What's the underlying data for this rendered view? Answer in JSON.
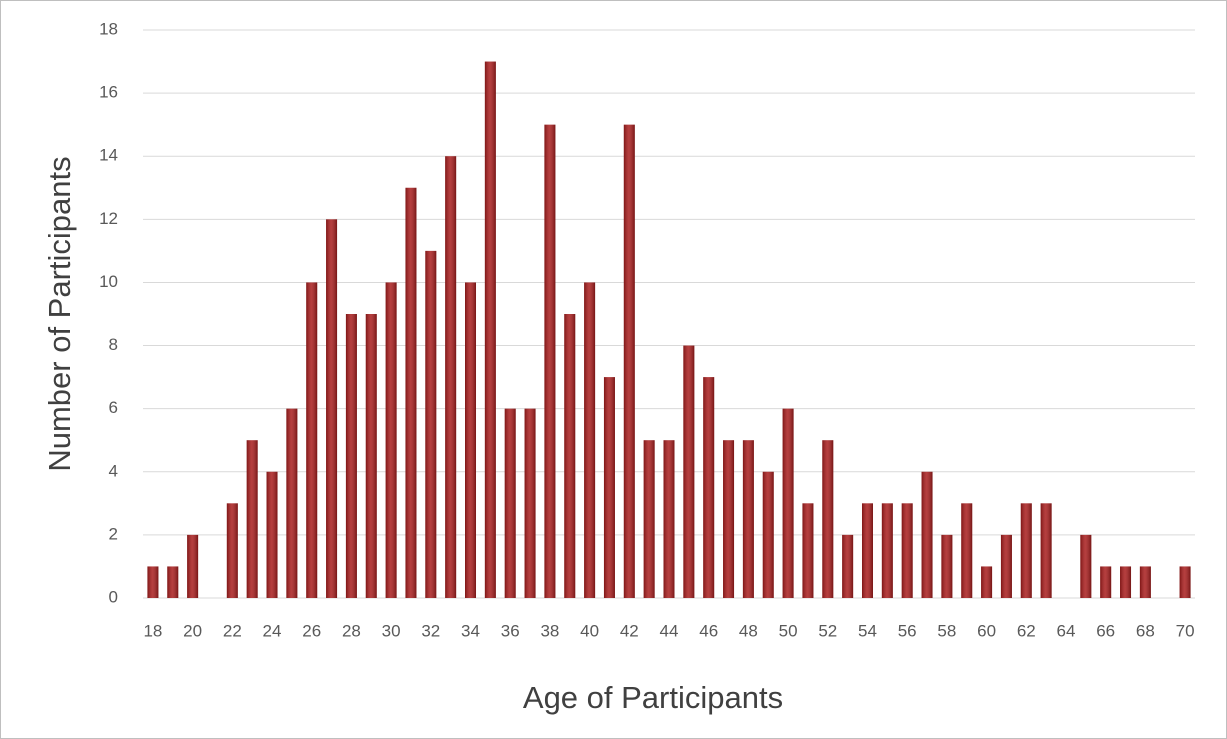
{
  "chart_data": {
    "type": "bar",
    "x_label": "Age of Participants",
    "y_label": "Number of Participants",
    "categories": [
      "18",
      null,
      "20",
      null,
      "22",
      null,
      "24",
      null,
      "26",
      null,
      "28",
      null,
      "30",
      null,
      "32",
      null,
      "34",
      null,
      "36",
      null,
      "38",
      null,
      "40",
      null,
      "42",
      null,
      "44",
      null,
      "46",
      null,
      "48",
      null,
      "50",
      null,
      "52",
      null,
      "54",
      null,
      "56",
      null,
      "58",
      null,
      "60",
      null,
      "62",
      null,
      "64",
      null,
      "66",
      null,
      "68",
      null,
      "70"
    ],
    "values": [
      1,
      1,
      2,
      0,
      3,
      5,
      4,
      6,
      10,
      12,
      9,
      9,
      10,
      13,
      11,
      14,
      10,
      17,
      6,
      6,
      15,
      9,
      10,
      7,
      15,
      5,
      5,
      8,
      7,
      5,
      5,
      4,
      6,
      3,
      5,
      2,
      3,
      3,
      3,
      4,
      2,
      3,
      1,
      2,
      3,
      3,
      0,
      2,
      1,
      1,
      1,
      0,
      1
    ],
    "color": "#a81c1c",
    "ylim": [
      0,
      18
    ],
    "yticks": [
      0,
      2,
      4,
      6,
      8,
      10,
      12,
      14,
      16,
      18
    ],
    "grid": true
  }
}
